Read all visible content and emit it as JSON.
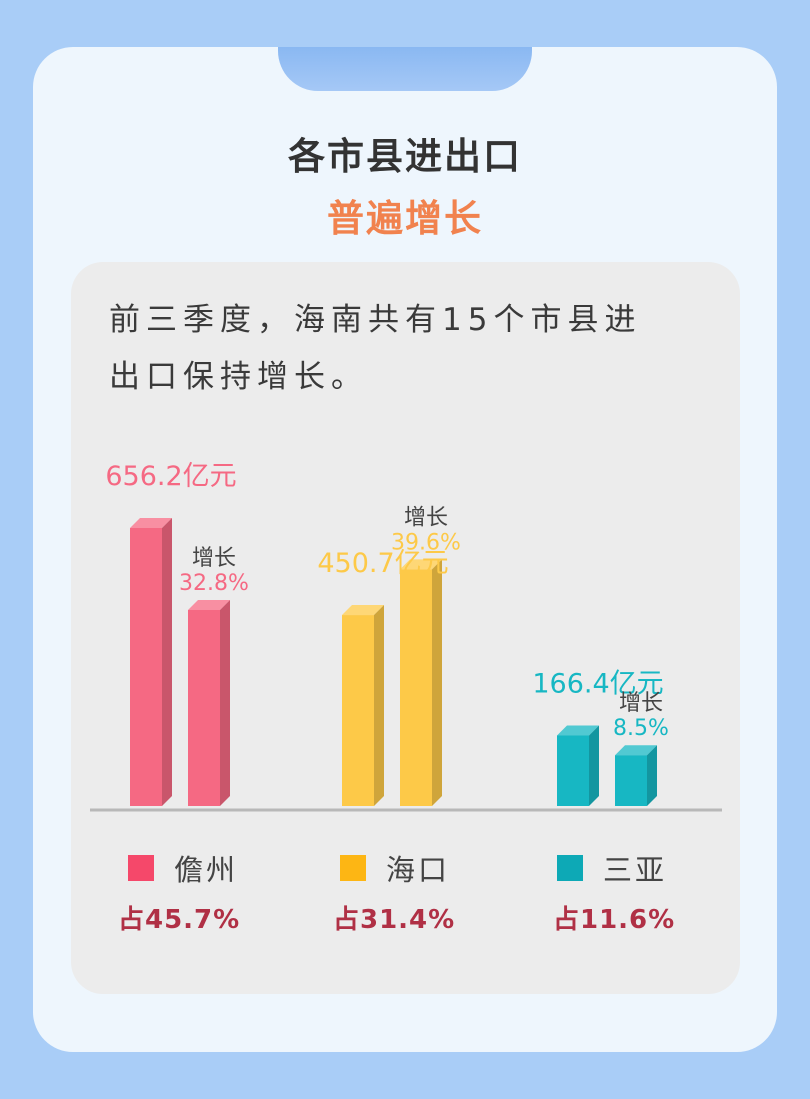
{
  "header": {
    "title_line1": "各市县进出口",
    "title_line2": "普遍增长"
  },
  "description": {
    "line1": "前三季度，海南共有15个市县进",
    "line2": "出口保持增长。"
  },
  "colors": {
    "danzhou": "#f56983",
    "haikou": "#fdc948",
    "sanya": "#17b7c3",
    "title_accent": "#f1824e",
    "share_text": "#b03045"
  },
  "chart_data": {
    "type": "bar",
    "title": "",
    "categories": [
      "儋州",
      "海口",
      "三亚"
    ],
    "series": [
      {
        "name": "",
        "values": [
          656.2,
          450.7,
          166.4
        ],
        "labels": [
          "656.2亿元",
          "450.7亿元",
          "166.4亿元"
        ]
      },
      {
        "name": "增长",
        "values": [
          32.8,
          39.6,
          8.5
        ],
        "labels": [
          "32.8%",
          "39.6%",
          "8.5%"
        ]
      }
    ],
    "growth_caption": "增长",
    "shares": [
      "占45.7%",
      "占31.4%",
      "占11.6%"
    ],
    "legend_position": "bottom",
    "grid": false
  }
}
